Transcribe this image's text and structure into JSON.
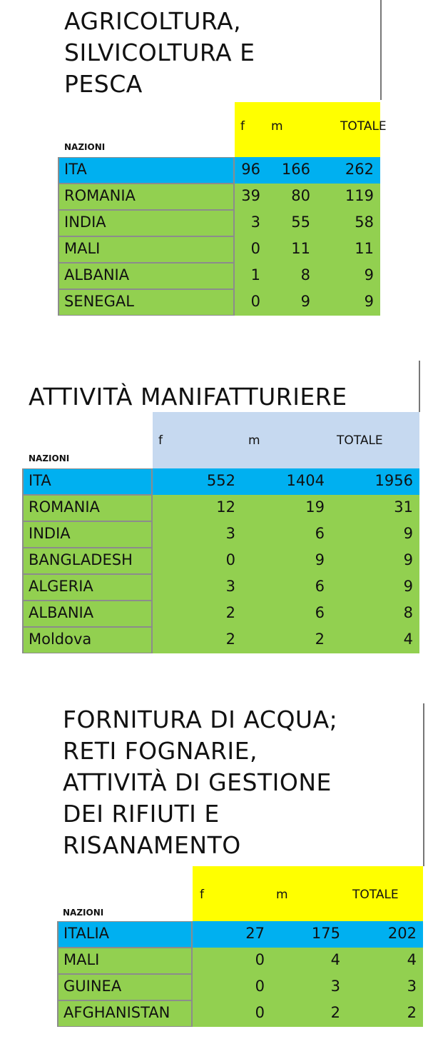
{
  "colors": {
    "header_yellow": "#ffff00",
    "header_lightblue": "#c6d9f0",
    "italy_row": "#00b0f0",
    "country_row": "#92d050"
  },
  "sections": [
    {
      "title_lines": [
        "AGRICOLTURA,",
        "SILVICOLTURA E",
        "PESCA"
      ],
      "header": {
        "nations": "NAZIONI",
        "f": "f",
        "m": "m",
        "total": "TOTALE",
        "color": "#ffff00"
      },
      "rows": [
        {
          "country": "ITA",
          "f": "96",
          "m": "166",
          "total": "262"
        },
        {
          "country": "ROMANIA",
          "f": "39",
          "m": "80",
          "total": "119"
        },
        {
          "country": "INDIA",
          "f": "3",
          "m": "55",
          "total": "58"
        },
        {
          "country": "MALI",
          "f": "0",
          "m": "11",
          "total": "11"
        },
        {
          "country": "ALBANIA",
          "f": "1",
          "m": "8",
          "total": "9"
        },
        {
          "country": "SENEGAL",
          "f": "0",
          "m": "9",
          "total": "9"
        }
      ]
    },
    {
      "title_lines": [
        "ATTIVITÀ MANIFATTURIERE"
      ],
      "header": {
        "nations": "NAZIONI",
        "f": "f",
        "m": "m",
        "total": "TOTALE",
        "color": "#c6d9f0"
      },
      "rows": [
        {
          "country": "ITA",
          "f": "552",
          "m": "1404",
          "total": "1956"
        },
        {
          "country": "ROMANIA",
          "f": "12",
          "m": "19",
          "total": "31"
        },
        {
          "country": "INDIA",
          "f": "3",
          "m": "6",
          "total": "9"
        },
        {
          "country": "BANGLADESH",
          "f": "0",
          "m": "9",
          "total": "9"
        },
        {
          "country": "ALGERIA",
          "f": "3",
          "m": "6",
          "total": "9"
        },
        {
          "country": "ALBANIA",
          "f": "2",
          "m": "6",
          "total": "8"
        },
        {
          "country": "Moldova",
          "f": "2",
          "m": "2",
          "total": "4"
        }
      ]
    },
    {
      "title_lines": [
        "FORNITURA DI ACQUA;",
        "RETI FOGNARIE,",
        "ATTIVITÀ DI GESTIONE",
        "DEI RIFIUTI E",
        "RISANAMENTO"
      ],
      "header": {
        "nations": "NAZIONI",
        "f": "f",
        "m": "m",
        "total": "TOTALE",
        "color": "#ffff00"
      },
      "rows": [
        {
          "country": "ITALIA",
          "f": "27",
          "m": "175",
          "total": "202"
        },
        {
          "country": "MALI",
          "f": "0",
          "m": "4",
          "total": "4"
        },
        {
          "country": "GUINEA",
          "f": "0",
          "m": "3",
          "total": "3"
        },
        {
          "country": "AFGHANISTAN",
          "f": "0",
          "m": "2",
          "total": "2"
        }
      ]
    }
  ]
}
